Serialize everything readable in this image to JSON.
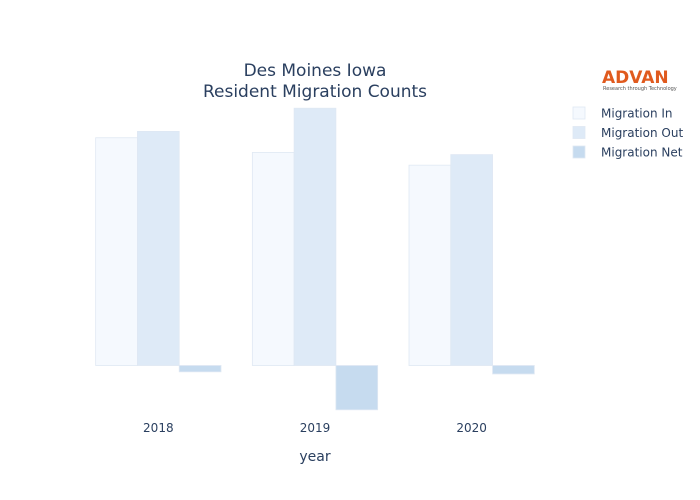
{
  "chart_data": {
    "type": "bar",
    "title_lines": [
      "Des Moines Iowa",
      "Resident Migration Counts"
    ],
    "xlabel": "year",
    "ylabel": "",
    "categories": [
      "2018",
      "2019",
      "2020"
    ],
    "series": [
      {
        "name": "Migration In",
        "color": "#f5f9fe",
        "values": [
          54000,
          50500,
          47500
        ]
      },
      {
        "name": "Migration Out",
        "color": "#deeaf7",
        "values": [
          55500,
          61000,
          50000
        ]
      },
      {
        "name": "Migration Net",
        "color": "#c6dbef",
        "values": [
          -1500,
          -10500,
          -2000
        ]
      }
    ],
    "ylim": [
      -11500,
      62000
    ],
    "grid": false,
    "legend_position": "top-right"
  },
  "logo": {
    "text": "ADVAN",
    "tagline": "Research through Technology",
    "color": "#e05a1e"
  }
}
